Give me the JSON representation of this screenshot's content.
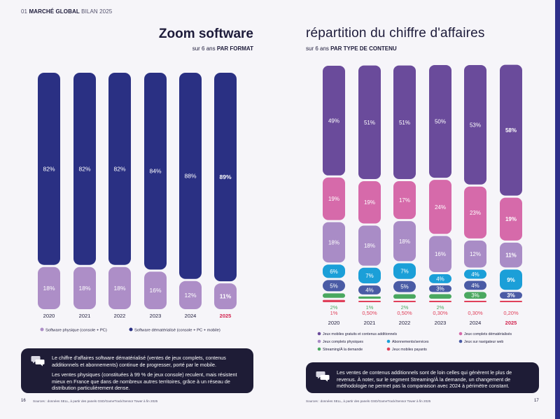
{
  "header": {
    "number": "01",
    "section": "MARCHÉ GLOBAL",
    "subtitle": "BILAN 2025"
  },
  "left": {
    "title": "Zoom software",
    "sub_prefix": "sur 6 ans ",
    "sub_bold": "PAR FORMAT"
  },
  "right": {
    "title": "répartition du chiffre d'affaires",
    "sub_prefix": "sur 6 ans ",
    "sub_bold": "PAR TYPE DE CONTENU"
  },
  "note_left": {
    "p1": "Le chiffre d'affaires software dématérialisé (ventes de jeux complets, contenus additionnels et abonnements) continue de progresser, porté par le mobile.",
    "p2": "Les ventes physiques (constituées à 99 % de jeux console) reculent, mais résistent mieux en France que dans de nombreux autres territoires, grâce à un réseau de distribution particulièrement dense."
  },
  "note_right": {
    "p1": "Les ventes de contenus additionnels sont de loin celles qui génèrent le plus de revenus. À noter, sur le segment Streaming/À la demande, un changement de méthodologie ne permet pas la comparaison avec 2024 à périmètre constant."
  },
  "footer": {
    "page_left": "16",
    "page_right": "17",
    "source_left": "Sources : données SELL, à partir des panels GSD/GameTrack/Sensor Tower à fin 2025",
    "source_right": "Sources : données SELL, à partir des panels GSD/GameTrack/Sensor Tower à fin 2025"
  },
  "colors": {
    "navy": "#2a3083",
    "lilac": "#ad8ec7",
    "purple": "#6a4b9b",
    "pink": "#d66aaa",
    "lavender": "#a98cc6",
    "cyan": "#1b9fd8",
    "blue": "#4a5ba5",
    "green": "#4aa860",
    "red": "#e0405a",
    "highlight": "#d2244f"
  },
  "chart_data": [
    {
      "type": "bar",
      "stacked": true,
      "categories": [
        "2020",
        "2021",
        "2022",
        "2023",
        "2024",
        "2025"
      ],
      "highlight_category": "2025",
      "series": [
        {
          "name": "Software physique (console + PC)",
          "values": [
            18,
            18,
            18,
            16,
            12,
            11
          ],
          "labels": [
            "18%",
            "18%",
            "18%",
            "16%",
            "12%",
            "11%"
          ]
        },
        {
          "name": "Software dématérialisé (console + PC + mobile)",
          "values": [
            82,
            82,
            82,
            84,
            88,
            89
          ],
          "labels": [
            "82%",
            "82%",
            "82%",
            "84%",
            "88%",
            "89%"
          ]
        }
      ],
      "title": "Zoom software",
      "legend_position": "bottom"
    },
    {
      "type": "bar",
      "stacked": true,
      "categories": [
        "2020",
        "2021",
        "2022",
        "2023",
        "2024",
        "2025"
      ],
      "highlight_category": "2025",
      "series": [
        {
          "name": "Jeux mobiles payants",
          "values": [
            1,
            0.5,
            0.5,
            0.3,
            0.3,
            0.2
          ],
          "labels": [
            "1%",
            "0,50%",
            "0,50%",
            "0,30%",
            "0,30%",
            "0,20%"
          ]
        },
        {
          "name": "Streaming/À la demande",
          "values": [
            2,
            1,
            2,
            2,
            3,
            0
          ],
          "labels": [
            "2%",
            "1%",
            "2%",
            "2%",
            "3%",
            ""
          ]
        },
        {
          "name": "Jeux sur navigateur web",
          "values": [
            5,
            4,
            5,
            3,
            4,
            3
          ],
          "labels": [
            "5%",
            "4%",
            "5%",
            "3%",
            "4%",
            "3%"
          ]
        },
        {
          "name": "Abonnements/services",
          "values": [
            6,
            7,
            7,
            4,
            4,
            9
          ],
          "labels": [
            "6%",
            "7%",
            "7%",
            "4%",
            "4%",
            "9%"
          ]
        },
        {
          "name": "Jeux complets physiques",
          "values": [
            18,
            18,
            18,
            16,
            12,
            11
          ],
          "labels": [
            "18%",
            "18%",
            "18%",
            "16%",
            "12%",
            "11%"
          ]
        },
        {
          "name": "Jeux complets dématérialisés",
          "values": [
            19,
            19,
            17,
            24,
            23,
            19
          ],
          "labels": [
            "19%",
            "19%",
            "17%",
            "24%",
            "23%",
            "19%"
          ]
        },
        {
          "name": "Jeux mobiles gratuits et contenus additionnels",
          "values": [
            49,
            51,
            51,
            50,
            53,
            58
          ],
          "labels": [
            "49%",
            "51%",
            "51%",
            "50%",
            "53%",
            "58%"
          ]
        }
      ],
      "title": "répartition du chiffre d'affaires",
      "legend_position": "bottom"
    }
  ]
}
